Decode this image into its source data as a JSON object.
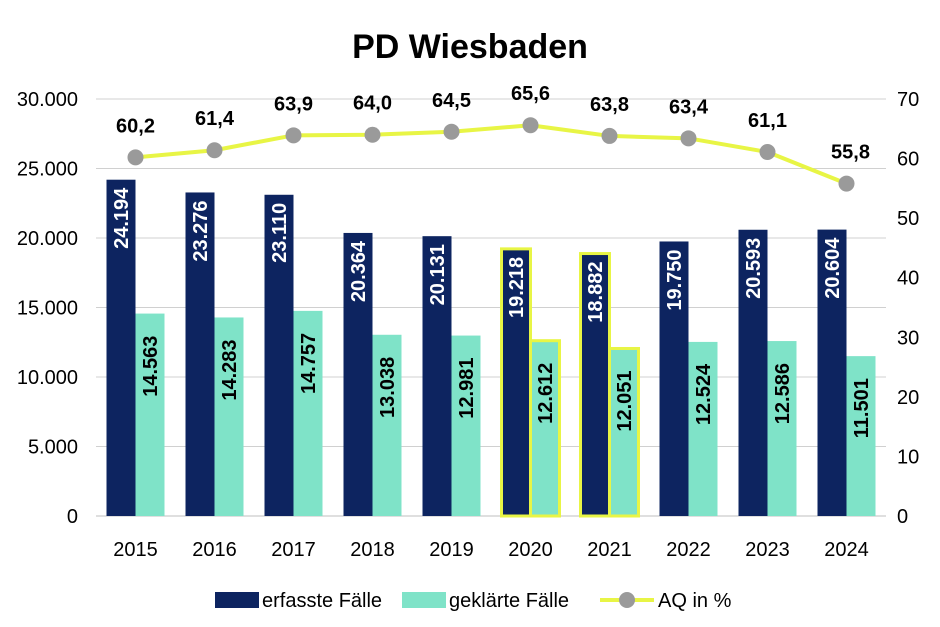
{
  "chart_data": {
    "type": "bar",
    "title": "PD Wiesbaden",
    "categories": [
      "2015",
      "2016",
      "2017",
      "2018",
      "2019",
      "2020",
      "2021",
      "2022",
      "2023",
      "2024"
    ],
    "series": [
      {
        "name": "erfasste Fälle",
        "type": "bar",
        "axis": "left",
        "color": "#0d2460",
        "values": [
          24194,
          23276,
          23110,
          20364,
          20131,
          19218,
          18882,
          19750,
          20593,
          20604
        ],
        "labels": [
          "24.194",
          "23.276",
          "23.110",
          "20.364",
          "20.131",
          "19.218",
          "18.882",
          "19.750",
          "20.593",
          "20.604"
        ]
      },
      {
        "name": "geklärte Fälle",
        "type": "bar",
        "axis": "left",
        "color": "#7fe3c8",
        "values": [
          14563,
          14283,
          14757,
          13038,
          12981,
          12612,
          12051,
          12524,
          12586,
          11501
        ],
        "labels": [
          "14.563",
          "14.283",
          "14.757",
          "13.038",
          "12.981",
          "12.612",
          "12.051",
          "12.524",
          "12.586",
          "11.501"
        ]
      },
      {
        "name": "AQ in %",
        "type": "line",
        "axis": "right",
        "color": "#e8f545",
        "marker_color": "#9a9a9a",
        "values": [
          60.2,
          61.4,
          63.9,
          64.0,
          64.5,
          65.6,
          63.8,
          63.4,
          61.1,
          55.8
        ],
        "labels": [
          "60,2",
          "61,4",
          "63,9",
          "64,0",
          "64,5",
          "65,6",
          "63,8",
          "63,4",
          "61,1",
          "55,8"
        ]
      }
    ],
    "highlighted_categories": [
      "2020",
      "2021"
    ],
    "highlight_color": "#e8f545",
    "y_left": {
      "min": 0,
      "max": 30000,
      "ticks": [
        0,
        5000,
        10000,
        15000,
        20000,
        25000,
        30000
      ],
      "tick_labels": [
        "0",
        "5.000",
        "10.000",
        "15.000",
        "20.000",
        "25.000",
        "30.000"
      ]
    },
    "y_right": {
      "min": 0,
      "max": 70,
      "ticks": [
        0,
        10,
        20,
        30,
        40,
        50,
        60,
        70
      ],
      "tick_labels": [
        "0",
        "10",
        "20",
        "30",
        "40",
        "50",
        "60",
        "70"
      ]
    },
    "grid": true,
    "legend": {
      "position": "bottom",
      "entries": [
        "erfasste Fälle",
        "geklärte Fälle",
        "AQ in %"
      ]
    }
  }
}
